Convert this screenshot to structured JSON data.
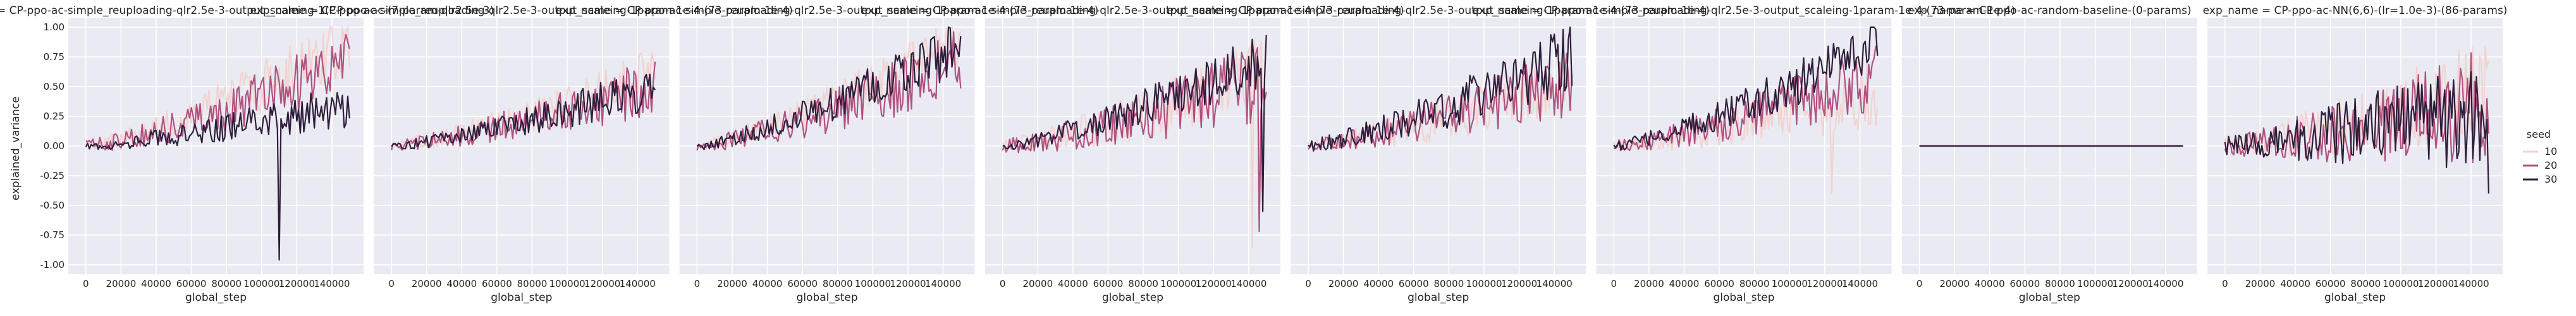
{
  "chart_data": {
    "type": "line",
    "xlabel": "global_step",
    "ylabel": "explained_variance",
    "xlim": [
      -10000,
      158000
    ],
    "ylim": [
      -1.08,
      1.08
    ],
    "x_ticks": [
      0,
      20000,
      40000,
      60000,
      80000,
      100000,
      120000,
      140000
    ],
    "x_tick_labels": [
      "0",
      "20000",
      "40000",
      "60000",
      "80000",
      "100000",
      "120000",
      "140000"
    ],
    "y_ticks": [
      -1.0,
      -0.75,
      -0.5,
      -0.25,
      0.0,
      0.25,
      0.5,
      0.75,
      1.0
    ],
    "y_tick_labels": [
      "-1.00",
      "-0.75",
      "-0.50",
      "-0.25",
      "0.00",
      "0.25",
      "0.50",
      "0.75",
      "1.00"
    ],
    "grid": true,
    "legend": {
      "title": "seed",
      "placement": "right",
      "entries": [
        {
          "label": "10",
          "color": "#f2d3d0"
        },
        {
          "label": "20",
          "color": "#b0527f"
        },
        {
          "label": "30",
          "color": "#2e1e3b"
        }
      ]
    },
    "panels": [
      {
        "title": "exp_name = CP-ppo-ac-simple_reuploading-qlr2.5e-3-output_scaleing-1(CP-ppo-ac-(7-param-qlr2.5e-3)",
        "seed_10": {
          "start": 0.0,
          "end": 0.85,
          "noise": 0.3
        },
        "seed_20": {
          "start": 0.0,
          "end": 0.7,
          "noise": 0.3
        },
        "seed_30": {
          "start": 0.0,
          "end": 0.35,
          "noise": 0.2,
          "dip": {
            "x": 110000,
            "y": -0.96
          }
        }
      },
      {
        "title": "exp_name = CP-ppo-ac-simple_reuploading-qlr2.5e-3-output_scaleing-1param-1e-4-(73-param-1e-4)",
        "seed_10": {
          "start": 0.0,
          "end": 0.6,
          "noise": 0.25
        },
        "seed_20": {
          "start": 0.0,
          "end": 0.5,
          "noise": 0.25
        },
        "seed_30": {
          "start": 0.0,
          "end": 0.5,
          "noise": 0.2
        }
      },
      {
        "title": "exp_name = CP-ppo-ac-simple_reuploading-qlr2.5e-3-output_scaleing-1param-1e-4-(73-param-1e-4)",
        "seed_10": {
          "start": 0.0,
          "end": 0.9,
          "noise": 0.25
        },
        "seed_20": {
          "start": 0.0,
          "end": 0.7,
          "noise": 0.3
        },
        "seed_30": {
          "start": 0.0,
          "end": 0.85,
          "noise": 0.25
        }
      },
      {
        "title": "exp_name = CP-ppo-ac-simple_reuploading-qlr2.5e-3-output_scaleing-1param-1e-4-(73-param-1e-4)",
        "seed_10": {
          "start": 0.0,
          "end": 0.6,
          "noise": 0.35,
          "dip": {
            "x": 142000,
            "y": -0.85
          }
        },
        "seed_20": {
          "start": 0.0,
          "end": 0.55,
          "noise": 0.35,
          "dip": {
            "x": 146000,
            "y": -0.72
          }
        },
        "seed_30": {
          "start": 0.0,
          "end": 0.75,
          "noise": 0.25,
          "dip": {
            "x": 148000,
            "y": -0.55
          }
        }
      },
      {
        "title": "exp_name = CP-ppo-ac-simple_reuploading-qlr2.5e-3-output_scaleing-1param-1e-4-(73-param-1e-4)",
        "seed_10": {
          "start": 0.0,
          "end": 0.55,
          "noise": 0.3
        },
        "seed_20": {
          "start": 0.0,
          "end": 0.55,
          "noise": 0.3
        },
        "seed_30": {
          "start": 0.0,
          "end": 0.75,
          "noise": 0.3
        }
      },
      {
        "title": "exp_name = CP-ppo-ac-simple_reuploading-qlr2.5e-3-output_scaleing-1param-1e-4-(73-param-1e-4)",
        "seed_10": {
          "start": 0.0,
          "end": 0.45,
          "noise": 0.3,
          "dip": {
            "x": 124000,
            "y": -0.4
          }
        },
        "seed_20": {
          "start": 0.0,
          "end": 0.6,
          "noise": 0.3
        },
        "seed_30": {
          "start": 0.0,
          "end": 0.85,
          "noise": 0.25
        }
      },
      {
        "title": "exp_name = CP-ppo-ac-random-baseline-(0-params)",
        "seed_10": {
          "start": 0.0,
          "end": 0.0,
          "noise": 0.0
        },
        "seed_20": {
          "start": 0.0,
          "end": 0.0,
          "noise": 0.0
        },
        "seed_30": {
          "start": 0.0,
          "end": 0.0,
          "noise": 0.0
        }
      },
      {
        "title": "exp_name = CP-ppo-ac-NN(6,6)-(lr=1.0e-3)-(86-params)",
        "seed_10": {
          "start": 0.0,
          "end": 0.5,
          "noise": 0.45
        },
        "seed_20": {
          "start": 0.0,
          "end": 0.35,
          "noise": 0.5
        },
        "seed_30": {
          "start": 0.0,
          "end": 0.3,
          "noise": 0.5,
          "dip": {
            "x": 150000,
            "y": -0.4
          }
        }
      }
    ]
  }
}
